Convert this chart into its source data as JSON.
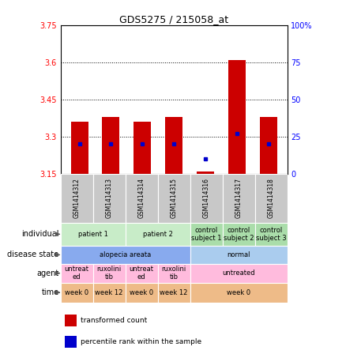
{
  "title": "GDS5275 / 215058_at",
  "samples": [
    "GSM1414312",
    "GSM1414313",
    "GSM1414314",
    "GSM1414315",
    "GSM1414316",
    "GSM1414317",
    "GSM1414318"
  ],
  "transformed_count": [
    3.36,
    3.38,
    3.36,
    3.38,
    3.16,
    3.61,
    3.38
  ],
  "percentile_rank": [
    20,
    20,
    20,
    20,
    10,
    27,
    20
  ],
  "ylim_left": [
    3.15,
    3.75
  ],
  "ylim_right": [
    0,
    100
  ],
  "yticks_left": [
    3.15,
    3.3,
    3.45,
    3.6,
    3.75
  ],
  "yticks_right": [
    0,
    25,
    50,
    75,
    100
  ],
  "ytick_labels_left": [
    "3.15",
    "3.3",
    "3.45",
    "3.6",
    "3.75"
  ],
  "ytick_labels_right": [
    "0",
    "25",
    "50",
    "75",
    "100%"
  ],
  "bar_color": "#cc0000",
  "dot_color": "#0000cc",
  "bar_bottom": 3.15,
  "annotation_rows": {
    "individual": {
      "label": "individual",
      "groups": [
        {
          "span": [
            0,
            1
          ],
          "text": "patient 1",
          "color": "#c8ecc8"
        },
        {
          "span": [
            2,
            3
          ],
          "text": "patient 2",
          "color": "#c8ecc8"
        },
        {
          "span": [
            4,
            4
          ],
          "text": "control\nsubject 1",
          "color": "#aaddaa"
        },
        {
          "span": [
            5,
            5
          ],
          "text": "control\nsubject 2",
          "color": "#aaddaa"
        },
        {
          "span": [
            6,
            6
          ],
          "text": "control\nsubject 3",
          "color": "#aaddaa"
        }
      ]
    },
    "disease_state": {
      "label": "disease state",
      "groups": [
        {
          "span": [
            0,
            3
          ],
          "text": "alopecia areata",
          "color": "#88aaee"
        },
        {
          "span": [
            4,
            6
          ],
          "text": "normal",
          "color": "#aaccee"
        }
      ]
    },
    "agent": {
      "label": "agent",
      "groups": [
        {
          "span": [
            0,
            0
          ],
          "text": "untreat\ned",
          "color": "#ffbbdd"
        },
        {
          "span": [
            1,
            1
          ],
          "text": "ruxolini\ntib",
          "color": "#ffbbdd"
        },
        {
          "span": [
            2,
            2
          ],
          "text": "untreat\ned",
          "color": "#ffbbdd"
        },
        {
          "span": [
            3,
            3
          ],
          "text": "ruxolini\ntib",
          "color": "#ffbbdd"
        },
        {
          "span": [
            4,
            6
          ],
          "text": "untreated",
          "color": "#ffbbdd"
        }
      ]
    },
    "time": {
      "label": "time",
      "groups": [
        {
          "span": [
            0,
            0
          ],
          "text": "week 0",
          "color": "#eebb88"
        },
        {
          "span": [
            1,
            1
          ],
          "text": "week 12",
          "color": "#eebb88"
        },
        {
          "span": [
            2,
            2
          ],
          "text": "week 0",
          "color": "#eebb88"
        },
        {
          "span": [
            3,
            3
          ],
          "text": "week 12",
          "color": "#eebb88"
        },
        {
          "span": [
            4,
            6
          ],
          "text": "week 0",
          "color": "#eebb88"
        }
      ]
    }
  },
  "legend_items": [
    {
      "color": "#cc0000",
      "label": "transformed count"
    },
    {
      "color": "#0000cc",
      "label": "percentile rank within the sample"
    }
  ],
  "fig_width": 4.38,
  "fig_height": 4.53,
  "fig_dpi": 100
}
